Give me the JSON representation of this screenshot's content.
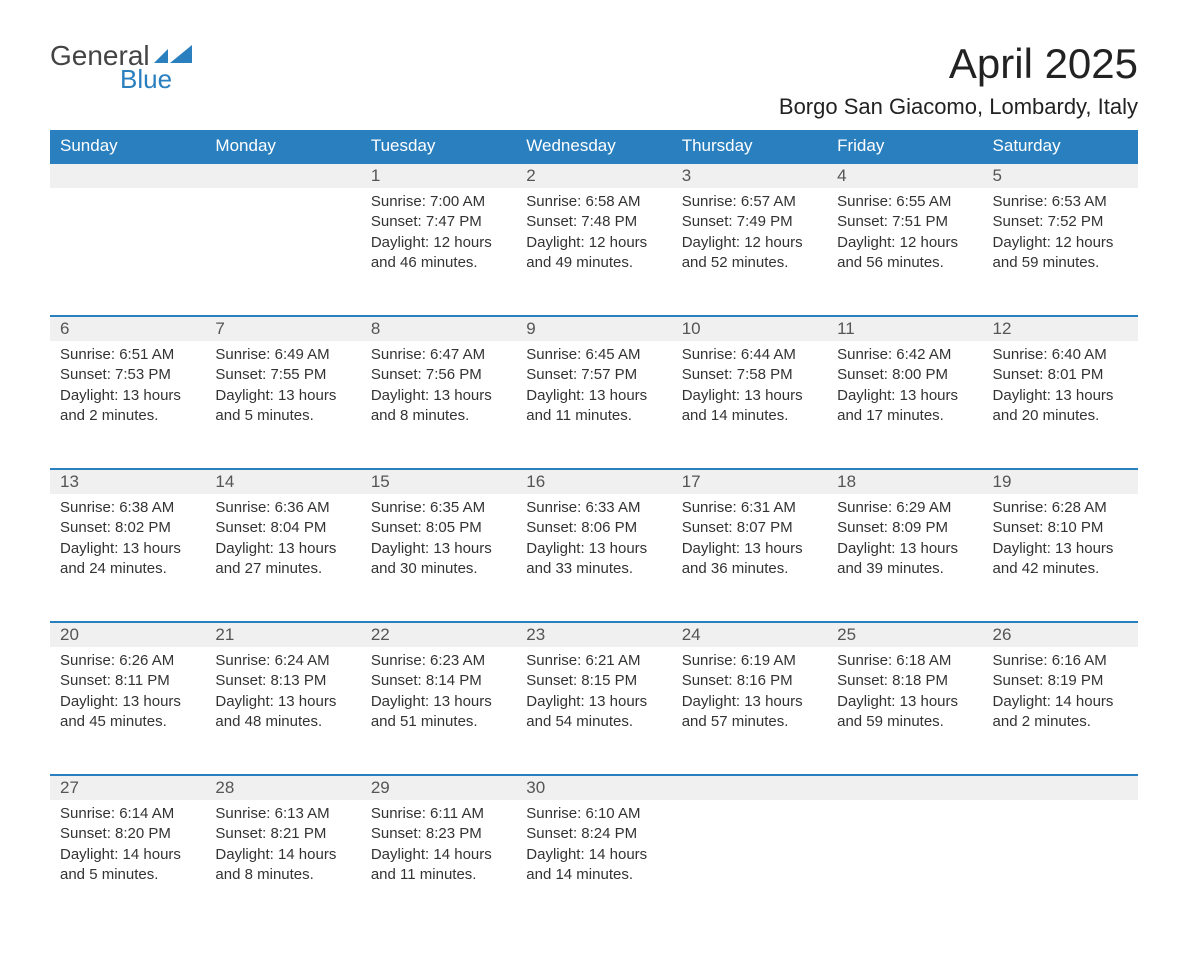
{
  "logo": {
    "general": "General",
    "blue": "Blue"
  },
  "title": "April 2025",
  "location": "Borgo San Giacomo, Lombardy, Italy",
  "colors": {
    "header_bg": "#2a7fbf",
    "header_text": "#ffffff",
    "daynum_bg": "#f0f0f0",
    "row_divider": "#2a7fbf",
    "body_text": "#333333",
    "background": "#ffffff"
  },
  "day_headers": [
    "Sunday",
    "Monday",
    "Tuesday",
    "Wednesday",
    "Thursday",
    "Friday",
    "Saturday"
  ],
  "weeks": [
    {
      "nums": [
        "",
        "",
        "1",
        "2",
        "3",
        "4",
        "5"
      ],
      "cells": [
        {
          "empty": true
        },
        {
          "empty": true
        },
        {
          "sunrise": "Sunrise: 7:00 AM",
          "sunset": "Sunset: 7:47 PM",
          "day1": "Daylight: 12 hours",
          "day2": "and 46 minutes."
        },
        {
          "sunrise": "Sunrise: 6:58 AM",
          "sunset": "Sunset: 7:48 PM",
          "day1": "Daylight: 12 hours",
          "day2": "and 49 minutes."
        },
        {
          "sunrise": "Sunrise: 6:57 AM",
          "sunset": "Sunset: 7:49 PM",
          "day1": "Daylight: 12 hours",
          "day2": "and 52 minutes."
        },
        {
          "sunrise": "Sunrise: 6:55 AM",
          "sunset": "Sunset: 7:51 PM",
          "day1": "Daylight: 12 hours",
          "day2": "and 56 minutes."
        },
        {
          "sunrise": "Sunrise: 6:53 AM",
          "sunset": "Sunset: 7:52 PM",
          "day1": "Daylight: 12 hours",
          "day2": "and 59 minutes."
        }
      ]
    },
    {
      "nums": [
        "6",
        "7",
        "8",
        "9",
        "10",
        "11",
        "12"
      ],
      "cells": [
        {
          "sunrise": "Sunrise: 6:51 AM",
          "sunset": "Sunset: 7:53 PM",
          "day1": "Daylight: 13 hours",
          "day2": "and 2 minutes."
        },
        {
          "sunrise": "Sunrise: 6:49 AM",
          "sunset": "Sunset: 7:55 PM",
          "day1": "Daylight: 13 hours",
          "day2": "and 5 minutes."
        },
        {
          "sunrise": "Sunrise: 6:47 AM",
          "sunset": "Sunset: 7:56 PM",
          "day1": "Daylight: 13 hours",
          "day2": "and 8 minutes."
        },
        {
          "sunrise": "Sunrise: 6:45 AM",
          "sunset": "Sunset: 7:57 PM",
          "day1": "Daylight: 13 hours",
          "day2": "and 11 minutes."
        },
        {
          "sunrise": "Sunrise: 6:44 AM",
          "sunset": "Sunset: 7:58 PM",
          "day1": "Daylight: 13 hours",
          "day2": "and 14 minutes."
        },
        {
          "sunrise": "Sunrise: 6:42 AM",
          "sunset": "Sunset: 8:00 PM",
          "day1": "Daylight: 13 hours",
          "day2": "and 17 minutes."
        },
        {
          "sunrise": "Sunrise: 6:40 AM",
          "sunset": "Sunset: 8:01 PM",
          "day1": "Daylight: 13 hours",
          "day2": "and 20 minutes."
        }
      ]
    },
    {
      "nums": [
        "13",
        "14",
        "15",
        "16",
        "17",
        "18",
        "19"
      ],
      "cells": [
        {
          "sunrise": "Sunrise: 6:38 AM",
          "sunset": "Sunset: 8:02 PM",
          "day1": "Daylight: 13 hours",
          "day2": "and 24 minutes."
        },
        {
          "sunrise": "Sunrise: 6:36 AM",
          "sunset": "Sunset: 8:04 PM",
          "day1": "Daylight: 13 hours",
          "day2": "and 27 minutes."
        },
        {
          "sunrise": "Sunrise: 6:35 AM",
          "sunset": "Sunset: 8:05 PM",
          "day1": "Daylight: 13 hours",
          "day2": "and 30 minutes."
        },
        {
          "sunrise": "Sunrise: 6:33 AM",
          "sunset": "Sunset: 8:06 PM",
          "day1": "Daylight: 13 hours",
          "day2": "and 33 minutes."
        },
        {
          "sunrise": "Sunrise: 6:31 AM",
          "sunset": "Sunset: 8:07 PM",
          "day1": "Daylight: 13 hours",
          "day2": "and 36 minutes."
        },
        {
          "sunrise": "Sunrise: 6:29 AM",
          "sunset": "Sunset: 8:09 PM",
          "day1": "Daylight: 13 hours",
          "day2": "and 39 minutes."
        },
        {
          "sunrise": "Sunrise: 6:28 AM",
          "sunset": "Sunset: 8:10 PM",
          "day1": "Daylight: 13 hours",
          "day2": "and 42 minutes."
        }
      ]
    },
    {
      "nums": [
        "20",
        "21",
        "22",
        "23",
        "24",
        "25",
        "26"
      ],
      "cells": [
        {
          "sunrise": "Sunrise: 6:26 AM",
          "sunset": "Sunset: 8:11 PM",
          "day1": "Daylight: 13 hours",
          "day2": "and 45 minutes."
        },
        {
          "sunrise": "Sunrise: 6:24 AM",
          "sunset": "Sunset: 8:13 PM",
          "day1": "Daylight: 13 hours",
          "day2": "and 48 minutes."
        },
        {
          "sunrise": "Sunrise: 6:23 AM",
          "sunset": "Sunset: 8:14 PM",
          "day1": "Daylight: 13 hours",
          "day2": "and 51 minutes."
        },
        {
          "sunrise": "Sunrise: 6:21 AM",
          "sunset": "Sunset: 8:15 PM",
          "day1": "Daylight: 13 hours",
          "day2": "and 54 minutes."
        },
        {
          "sunrise": "Sunrise: 6:19 AM",
          "sunset": "Sunset: 8:16 PM",
          "day1": "Daylight: 13 hours",
          "day2": "and 57 minutes."
        },
        {
          "sunrise": "Sunrise: 6:18 AM",
          "sunset": "Sunset: 8:18 PM",
          "day1": "Daylight: 13 hours",
          "day2": "and 59 minutes."
        },
        {
          "sunrise": "Sunrise: 6:16 AM",
          "sunset": "Sunset: 8:19 PM",
          "day1": "Daylight: 14 hours",
          "day2": "and 2 minutes."
        }
      ]
    },
    {
      "nums": [
        "27",
        "28",
        "29",
        "30",
        "",
        "",
        ""
      ],
      "cells": [
        {
          "sunrise": "Sunrise: 6:14 AM",
          "sunset": "Sunset: 8:20 PM",
          "day1": "Daylight: 14 hours",
          "day2": "and 5 minutes."
        },
        {
          "sunrise": "Sunrise: 6:13 AM",
          "sunset": "Sunset: 8:21 PM",
          "day1": "Daylight: 14 hours",
          "day2": "and 8 minutes."
        },
        {
          "sunrise": "Sunrise: 6:11 AM",
          "sunset": "Sunset: 8:23 PM",
          "day1": "Daylight: 14 hours",
          "day2": "and 11 minutes."
        },
        {
          "sunrise": "Sunrise: 6:10 AM",
          "sunset": "Sunset: 8:24 PM",
          "day1": "Daylight: 14 hours",
          "day2": "and 14 minutes."
        },
        {
          "empty": true
        },
        {
          "empty": true
        },
        {
          "empty": true
        }
      ]
    }
  ]
}
